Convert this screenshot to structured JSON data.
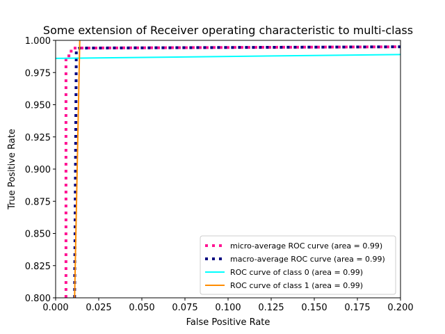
{
  "chart_data": {
    "type": "line",
    "title": "Some extension of Receiver operating characteristic to multi-class",
    "xlabel": "False Positive Rate",
    "ylabel": "True Positive Rate",
    "xlim": [
      0.0,
      0.2
    ],
    "ylim": [
      0.8,
      1.0
    ],
    "xticks": [
      "0.000",
      "0.025",
      "0.050",
      "0.075",
      "0.100",
      "0.125",
      "0.150",
      "0.175",
      "0.200"
    ],
    "yticks": [
      "0.800",
      "0.825",
      "0.850",
      "0.875",
      "0.900",
      "0.925",
      "0.950",
      "0.975",
      "1.000"
    ],
    "grid": false,
    "legend_position": "lower-right",
    "series": [
      {
        "name": "micro-average ROC curve (area = 0.99)",
        "color": "#ff1493",
        "style": "dotted",
        "x": [
          0.006,
          0.006,
          0.009,
          0.009,
          0.2
        ],
        "y": [
          0.8,
          0.988,
          0.988,
          0.994,
          0.995
        ]
      },
      {
        "name": "macro-average ROC curve (area = 0.99)",
        "color": "#000080",
        "style": "dotted",
        "x": [
          0.011,
          0.012,
          0.014,
          0.2
        ],
        "y": [
          0.8,
          0.993,
          0.994,
          0.995
        ]
      },
      {
        "name": "ROC curve of class 0 (area = 0.99)",
        "color": "#00ffff",
        "style": "solid",
        "x": [
          0.0,
          0.2
        ],
        "y": [
          0.986,
          0.989
        ]
      },
      {
        "name": "ROC curve of class 1 (area = 0.99)",
        "color": "#ff8c00",
        "style": "solid",
        "x": [
          0.011,
          0.014
        ],
        "y": [
          0.8,
          1.0
        ]
      }
    ]
  }
}
